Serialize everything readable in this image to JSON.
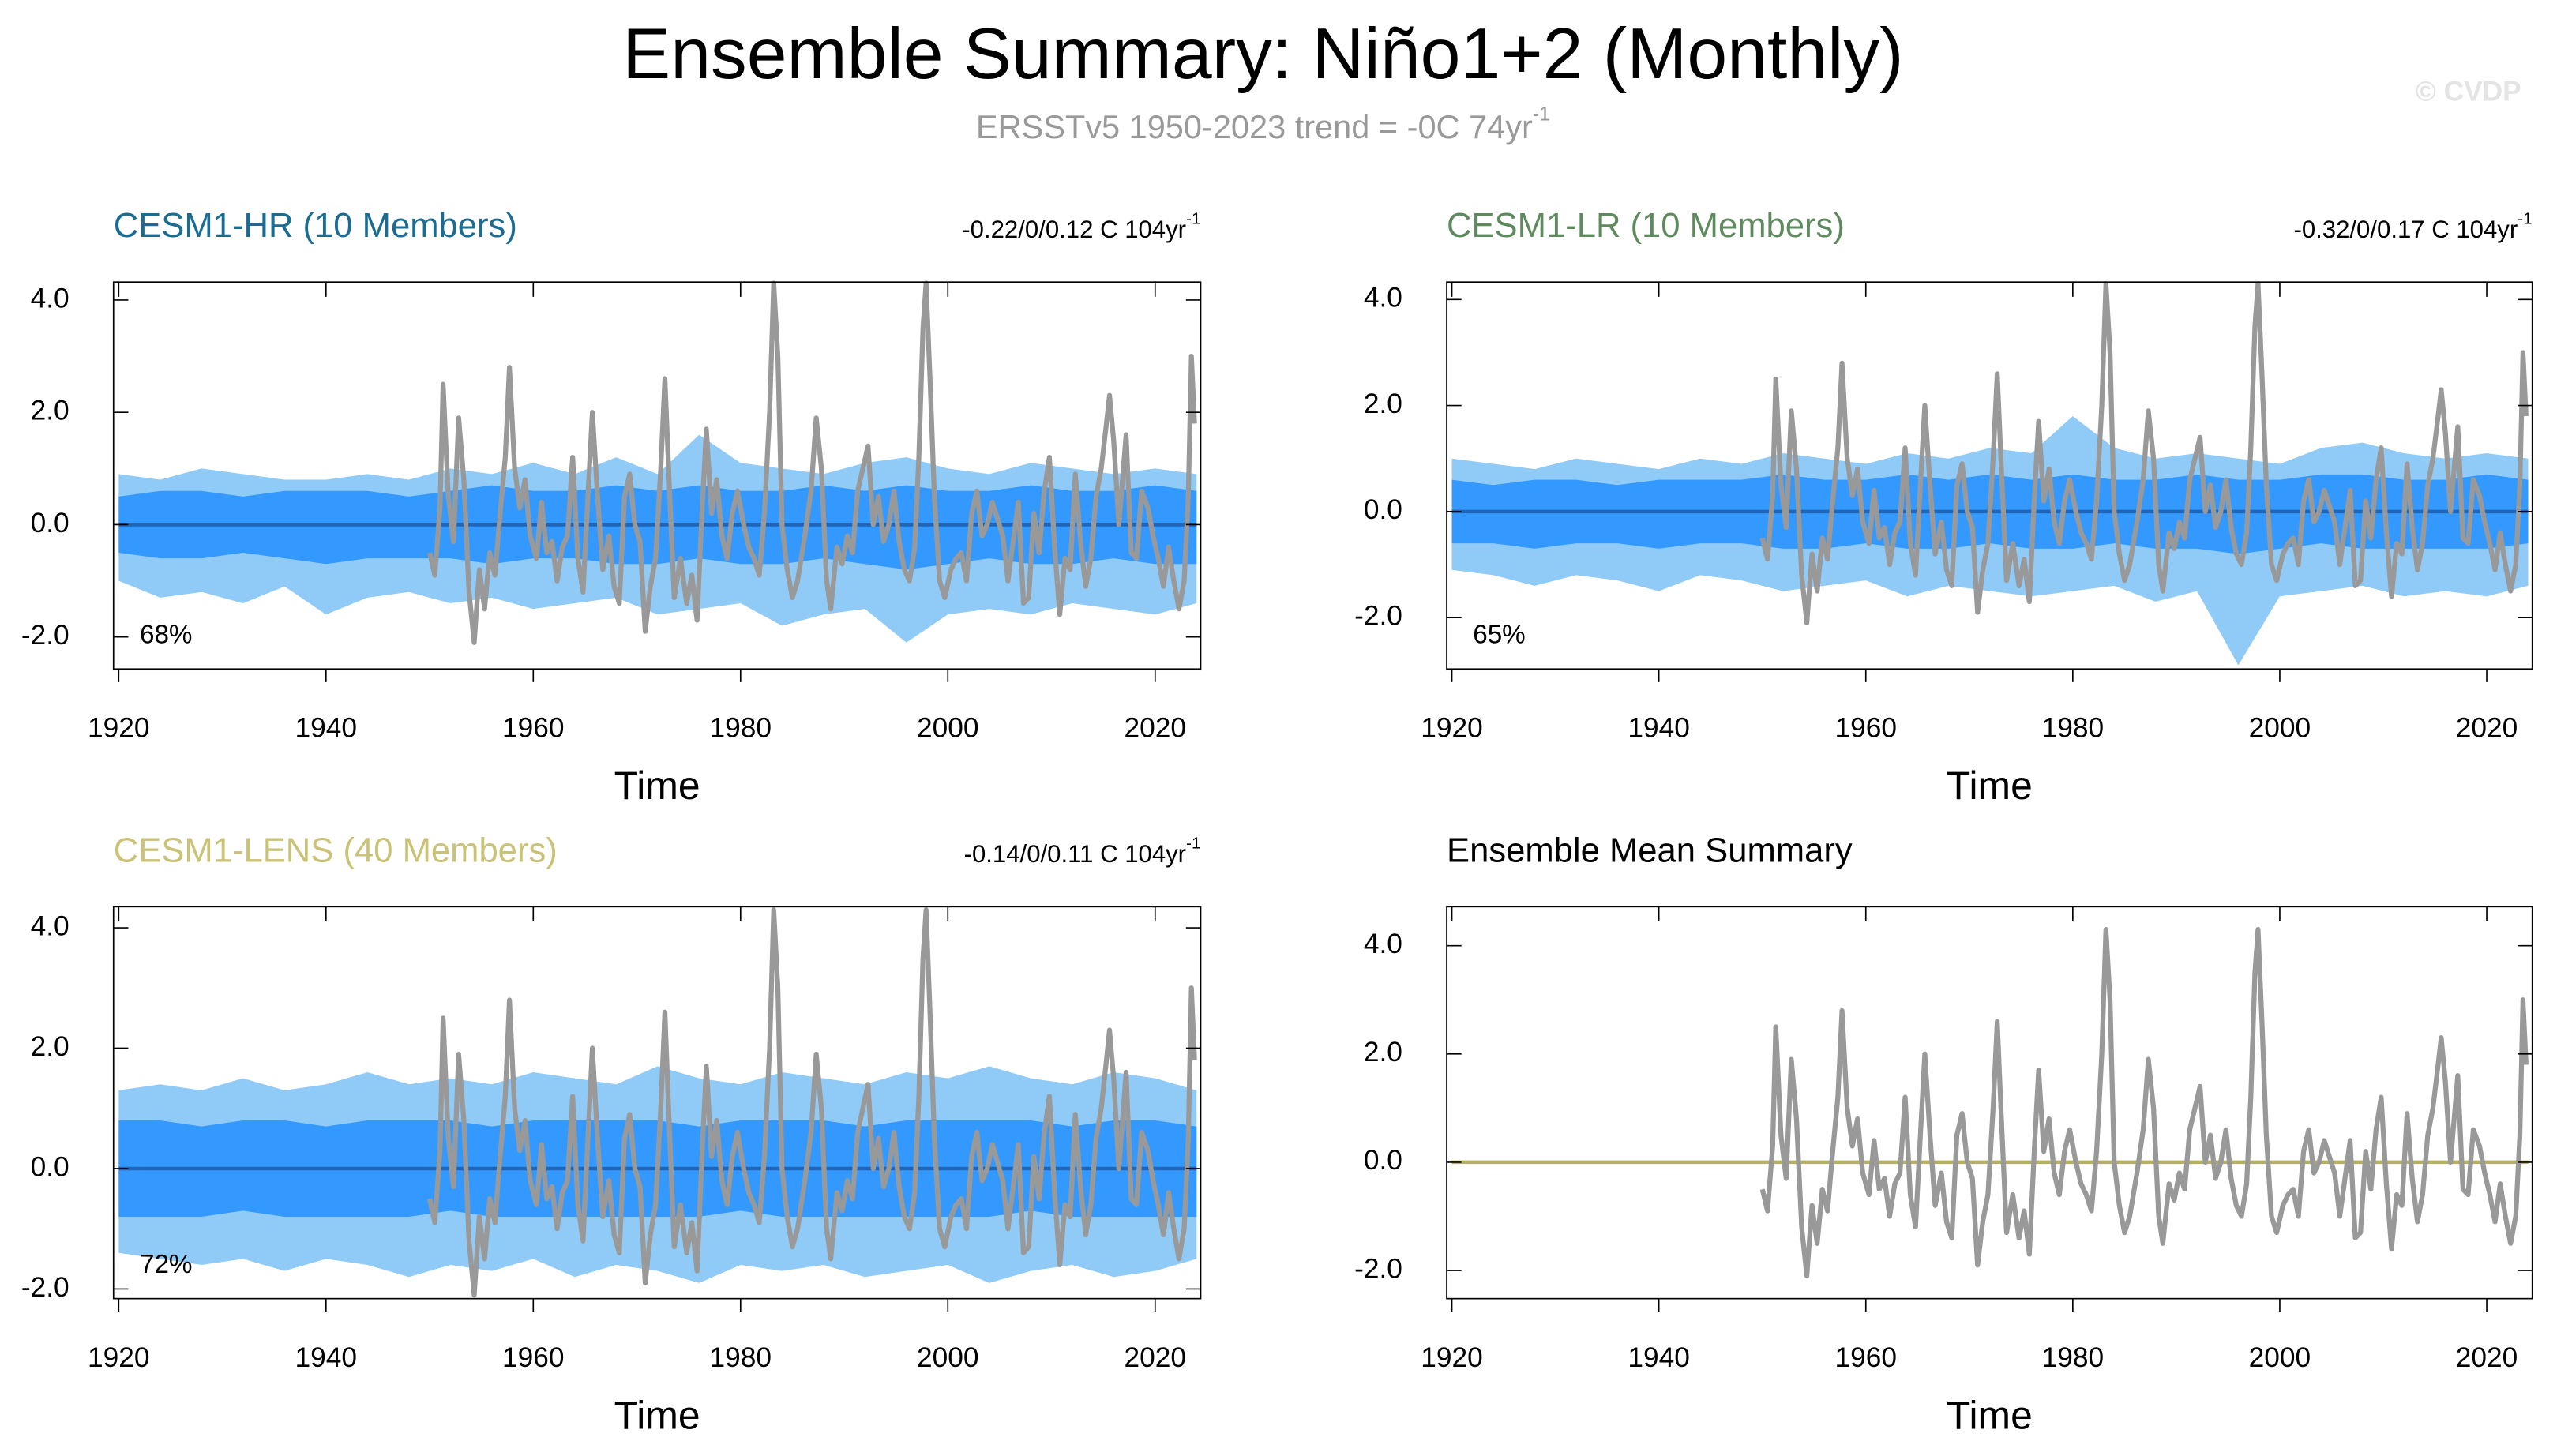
{
  "title": "Ensemble Summary: Niño1+2 (Monthly)",
  "subtitle": {
    "text": "ERSSTv5 1950-2023 trend = -0C 74yr",
    "sup": "-1"
  },
  "credit": "© CVDP",
  "observed": {
    "color": "#999999",
    "x": [
      1950.0,
      1950.5,
      1951.0,
      1951.3,
      1951.8,
      1952.3,
      1952.8,
      1953.3,
      1953.8,
      1954.3,
      1954.8,
      1955.3,
      1955.8,
      1956.3,
      1956.8,
      1957.3,
      1957.7,
      1958.2,
      1958.7,
      1959.2,
      1959.7,
      1960.3,
      1960.8,
      1961.3,
      1961.8,
      1962.3,
      1962.8,
      1963.3,
      1963.8,
      1964.3,
      1964.8,
      1965.3,
      1965.7,
      1966.2,
      1966.7,
      1967.3,
      1967.8,
      1968.3,
      1968.8,
      1969.3,
      1969.8,
      1970.3,
      1970.8,
      1971.3,
      1971.8,
      1972.3,
      1972.7,
      1973.1,
      1973.6,
      1974.2,
      1974.8,
      1975.3,
      1975.8,
      1976.3,
      1976.7,
      1977.2,
      1977.7,
      1978.2,
      1978.7,
      1979.2,
      1979.7,
      1980.3,
      1980.8,
      1981.3,
      1981.8,
      1982.3,
      1982.8,
      1983.2,
      1983.6,
      1984.0,
      1984.5,
      1985.0,
      1985.5,
      1986.2,
      1986.8,
      1987.3,
      1987.8,
      1988.3,
      1988.7,
      1989.3,
      1989.8,
      1990.3,
      1990.8,
      1991.3,
      1991.8,
      1992.3,
      1992.8,
      1993.3,
      1993.8,
      1994.3,
      1994.8,
      1995.3,
      1995.8,
      1996.3,
      1996.8,
      1997.2,
      1997.6,
      1997.9,
      1998.3,
      1998.7,
      1999.2,
      1999.7,
      2000.3,
      2000.8,
      2001.3,
      2001.8,
      2002.3,
      2002.8,
      2003.3,
      2003.8,
      2004.3,
      2004.8,
      2005.3,
      2005.8,
      2006.3,
      2006.8,
      2007.3,
      2007.8,
      2008.3,
      2008.8,
      2009.3,
      2009.8,
      2010.3,
      2010.8,
      2011.3,
      2011.8,
      2012.3,
      2012.8,
      2013.3,
      2013.8,
      2014.3,
      2014.8,
      2015.3,
      2015.6,
      2016.0,
      2016.5,
      2017.2,
      2017.7,
      2018.2,
      2018.7,
      2019.3,
      2019.8,
      2020.3,
      2020.8,
      2021.3,
      2021.8,
      2022.3,
      2022.8,
      2023.2,
      2023.5,
      2023.8
    ],
    "values": [
      -0.5,
      -0.9,
      0.3,
      2.5,
      0.5,
      -0.3,
      1.9,
      0.8,
      -1.2,
      -2.1,
      -0.8,
      -1.5,
      -0.5,
      -0.9,
      0.2,
      1.2,
      2.8,
      1.0,
      0.3,
      0.8,
      -0.2,
      -0.6,
      0.4,
      -0.5,
      -0.3,
      -1.0,
      -0.4,
      -0.2,
      1.2,
      -0.6,
      -1.2,
      0.6,
      2.0,
      0.5,
      -0.8,
      -0.2,
      -1.1,
      -1.4,
      0.5,
      0.9,
      0.0,
      -0.3,
      -1.9,
      -1.1,
      -0.6,
      1.0,
      2.6,
      0.8,
      -1.3,
      -0.6,
      -1.4,
      -0.9,
      -1.7,
      0.3,
      1.7,
      0.2,
      0.8,
      -0.2,
      -0.6,
      0.2,
      0.6,
      0.0,
      -0.4,
      -0.6,
      -0.9,
      0.2,
      2.0,
      4.3,
      3.0,
      0.0,
      -0.8,
      -1.3,
      -1.0,
      -0.2,
      0.6,
      1.9,
      1.0,
      -1.0,
      -1.5,
      -0.4,
      -0.7,
      -0.2,
      -0.5,
      0.6,
      1.0,
      1.4,
      0.0,
      0.5,
      -0.3,
      0.0,
      0.6,
      -0.3,
      -0.8,
      -1.0,
      -0.4,
      1.2,
      3.5,
      4.3,
      2.5,
      0.5,
      -1.0,
      -1.3,
      -0.8,
      -0.6,
      -0.5,
      -1.0,
      0.2,
      0.6,
      -0.2,
      0.0,
      0.4,
      0.1,
      -0.2,
      -1.0,
      -0.3,
      0.4,
      -1.4,
      -1.3,
      0.2,
      -0.5,
      0.6,
      1.2,
      -0.4,
      -1.6,
      -0.6,
      -0.8,
      0.9,
      -0.3,
      -1.1,
      -0.6,
      0.5,
      1.0,
      1.8,
      2.3,
      1.5,
      0.0,
      1.6,
      -0.5,
      -0.6,
      0.6,
      0.3,
      -0.2,
      -0.6,
      -1.1,
      -0.4,
      -1.0,
      -1.5,
      -1.0,
      0.5,
      3.0,
      1.8
    ]
  },
  "chart_data": [
    {
      "type": "line",
      "title": "CESM1-HR (10 Members)",
      "title_color": "#1a6c92",
      "trend": {
        "text": "-0.22/0/0.12 C 104yr",
        "sup": "-1"
      },
      "percent": "68%",
      "xlabel": "Time",
      "xlim": [
        1919.5,
        2024.4
      ],
      "xticks": [
        1920,
        1940,
        1960,
        1980,
        2000,
        2020
      ],
      "ylim": [
        -2.57,
        4.32
      ],
      "yticks": [
        {
          "value": -2,
          "label": "-2.0"
        },
        {
          "value": 0,
          "label": "0.0"
        },
        {
          "value": 2,
          "label": "2.0"
        },
        {
          "value": 4,
          "label": "4.0"
        }
      ],
      "spread": {
        "outer_color": "#90caf7",
        "inner_color": "#3399ff",
        "x": [
          1920,
          1924,
          1928,
          1932,
          1936,
          1940,
          1944,
          1948,
          1952,
          1956,
          1960,
          1964,
          1968,
          1972,
          1976,
          1980,
          1984,
          1988,
          1992,
          1996,
          2000,
          2004,
          2008,
          2012,
          2016,
          2020,
          2024
        ],
        "outer_high": [
          0.9,
          0.8,
          1.0,
          0.9,
          0.8,
          0.8,
          0.9,
          0.8,
          1.0,
          0.9,
          1.1,
          0.9,
          1.2,
          0.9,
          1.6,
          1.1,
          1.0,
          0.9,
          1.1,
          1.2,
          1.0,
          0.9,
          1.1,
          1.0,
          0.9,
          1.0,
          0.9
        ],
        "outer_low": [
          -1.0,
          -1.3,
          -1.2,
          -1.4,
          -1.1,
          -1.6,
          -1.3,
          -1.2,
          -1.4,
          -1.3,
          -1.5,
          -1.4,
          -1.3,
          -1.6,
          -1.5,
          -1.4,
          -1.8,
          -1.6,
          -1.5,
          -2.1,
          -1.6,
          -1.5,
          -1.6,
          -1.4,
          -1.5,
          -1.6,
          -1.4
        ],
        "inner_high": [
          0.5,
          0.6,
          0.6,
          0.5,
          0.6,
          0.6,
          0.6,
          0.5,
          0.6,
          0.7,
          0.6,
          0.6,
          0.7,
          0.6,
          0.7,
          0.6,
          0.6,
          0.7,
          0.6,
          0.7,
          0.6,
          0.6,
          0.7,
          0.6,
          0.6,
          0.7,
          0.6
        ],
        "inner_low": [
          -0.5,
          -0.6,
          -0.6,
          -0.5,
          -0.6,
          -0.7,
          -0.6,
          -0.6,
          -0.6,
          -0.7,
          -0.6,
          -0.6,
          -0.7,
          -0.7,
          -0.6,
          -0.7,
          -0.7,
          -0.6,
          -0.7,
          -0.8,
          -0.7,
          -0.6,
          -0.7,
          -0.7,
          -0.6,
          -0.7,
          -0.7
        ]
      },
      "mean": {
        "color": "#1f66b8",
        "x": [
          1920,
          2024
        ],
        "values": [
          0,
          0
        ]
      }
    },
    {
      "type": "line",
      "title": "CESM1-LR (10 Members)",
      "title_color": "#5e8a5e",
      "trend": {
        "text": "-0.32/0/0.17 C 104yr",
        "sup": "-1"
      },
      "percent": "65%",
      "xlabel": "Time",
      "xlim": [
        1919.5,
        2024.4
      ],
      "xticks": [
        1920,
        1940,
        1960,
        1980,
        2000,
        2020
      ],
      "ylim": [
        -2.97,
        4.33
      ],
      "yticks": [
        {
          "value": -2,
          "label": "-2.0"
        },
        {
          "value": 0,
          "label": "0.0"
        },
        {
          "value": 2,
          "label": "2.0"
        },
        {
          "value": 4,
          "label": "4.0"
        }
      ],
      "spread": {
        "outer_color": "#90caf7",
        "inner_color": "#3399ff",
        "x": [
          1920,
          1924,
          1928,
          1932,
          1936,
          1940,
          1944,
          1948,
          1952,
          1956,
          1960,
          1964,
          1968,
          1972,
          1976,
          1980,
          1984,
          1988,
          1992,
          1996,
          2000,
          2004,
          2008,
          2012,
          2016,
          2020,
          2024
        ],
        "outer_high": [
          1.0,
          0.9,
          0.8,
          1.0,
          0.9,
          0.8,
          1.0,
          0.9,
          1.1,
          1.0,
          0.9,
          1.1,
          1.0,
          1.2,
          1.1,
          1.8,
          1.2,
          1.0,
          1.1,
          1.0,
          0.9,
          1.2,
          1.3,
          1.1,
          1.0,
          1.1,
          1.0
        ],
        "outer_low": [
          -1.1,
          -1.2,
          -1.4,
          -1.2,
          -1.3,
          -1.5,
          -1.2,
          -1.3,
          -1.5,
          -1.4,
          -1.3,
          -1.6,
          -1.4,
          -1.5,
          -1.6,
          -1.5,
          -1.4,
          -1.7,
          -1.5,
          -2.9,
          -1.6,
          -1.5,
          -1.4,
          -1.6,
          -1.5,
          -1.6,
          -1.4
        ],
        "inner_high": [
          0.6,
          0.5,
          0.6,
          0.6,
          0.5,
          0.6,
          0.6,
          0.6,
          0.7,
          0.6,
          0.6,
          0.7,
          0.6,
          0.7,
          0.6,
          0.7,
          0.6,
          0.6,
          0.7,
          0.6,
          0.6,
          0.7,
          0.7,
          0.6,
          0.6,
          0.7,
          0.6
        ],
        "inner_low": [
          -0.6,
          -0.6,
          -0.7,
          -0.6,
          -0.6,
          -0.7,
          -0.6,
          -0.6,
          -0.7,
          -0.7,
          -0.6,
          -0.7,
          -0.7,
          -0.6,
          -0.7,
          -0.7,
          -0.6,
          -0.7,
          -0.7,
          -0.8,
          -0.7,
          -0.6,
          -0.7,
          -0.7,
          -0.7,
          -0.7,
          -0.6
        ]
      },
      "mean": {
        "color": "#1f66b8",
        "x": [
          1920,
          2024
        ],
        "values": [
          0,
          0
        ]
      }
    },
    {
      "type": "line",
      "title": "CESM1-LENS (40 Members)",
      "title_color": "#c9c277",
      "trend": {
        "text": "-0.14/0/0.11 C 104yr",
        "sup": "-1"
      },
      "percent": "72%",
      "xlabel": "Time",
      "xlim": [
        1919.5,
        2024.4
      ],
      "xticks": [
        1920,
        1940,
        1960,
        1980,
        2000,
        2020
      ],
      "ylim": [
        -2.16,
        4.35
      ],
      "yticks": [
        {
          "value": -2,
          "label": "-2.0"
        },
        {
          "value": 0,
          "label": "0.0"
        },
        {
          "value": 2,
          "label": "2.0"
        },
        {
          "value": 4,
          "label": "4.0"
        }
      ],
      "spread": {
        "outer_color": "#90caf7",
        "inner_color": "#3399ff",
        "x": [
          1920,
          1924,
          1928,
          1932,
          1936,
          1940,
          1944,
          1948,
          1952,
          1956,
          1960,
          1964,
          1968,
          1972,
          1976,
          1980,
          1984,
          1988,
          1992,
          1996,
          2000,
          2004,
          2008,
          2012,
          2016,
          2020,
          2024
        ],
        "outer_high": [
          1.3,
          1.4,
          1.3,
          1.5,
          1.3,
          1.4,
          1.6,
          1.4,
          1.5,
          1.4,
          1.6,
          1.5,
          1.4,
          1.7,
          1.5,
          1.4,
          1.6,
          1.5,
          1.4,
          1.6,
          1.5,
          1.7,
          1.5,
          1.4,
          1.6,
          1.5,
          1.3
        ],
        "outer_low": [
          -1.4,
          -1.5,
          -1.6,
          -1.5,
          -1.7,
          -1.5,
          -1.6,
          -1.8,
          -1.6,
          -1.7,
          -1.5,
          -1.8,
          -1.6,
          -1.7,
          -1.9,
          -1.6,
          -1.7,
          -1.6,
          -1.8,
          -1.7,
          -1.6,
          -1.9,
          -1.7,
          -1.6,
          -1.8,
          -1.7,
          -1.5
        ],
        "inner_high": [
          0.8,
          0.8,
          0.7,
          0.8,
          0.8,
          0.7,
          0.8,
          0.8,
          0.8,
          0.7,
          0.8,
          0.8,
          0.8,
          0.8,
          0.7,
          0.8,
          0.8,
          0.8,
          0.7,
          0.8,
          0.8,
          0.8,
          0.8,
          0.7,
          0.8,
          0.8,
          0.7
        ],
        "inner_low": [
          -0.8,
          -0.8,
          -0.8,
          -0.7,
          -0.8,
          -0.8,
          -0.8,
          -0.8,
          -0.7,
          -0.8,
          -0.8,
          -0.8,
          -0.8,
          -0.8,
          -0.8,
          -0.7,
          -0.8,
          -0.8,
          -0.8,
          -0.8,
          -0.8,
          -0.8,
          -0.7,
          -0.8,
          -0.8,
          -0.8,
          -0.8
        ]
      },
      "mean": {
        "color": "#1f66b8",
        "x": [
          1920,
          2024
        ],
        "values": [
          0,
          0
        ]
      }
    },
    {
      "type": "line",
      "title": "Ensemble Mean Summary",
      "title_color": "#000000",
      "xlabel": "Time",
      "xlim": [
        1919.5,
        2024.4
      ],
      "xticks": [
        1920,
        1940,
        1960,
        1980,
        2000,
        2020
      ],
      "ylim": [
        -2.52,
        4.72
      ],
      "yticks": [
        {
          "value": -2,
          "label": "-2.0"
        },
        {
          "value": 0,
          "label": "0.0"
        },
        {
          "value": 2,
          "label": "2.0"
        },
        {
          "value": 4,
          "label": "4.0"
        }
      ],
      "mean": {
        "color": "#b5b064",
        "x": [
          1920,
          2024
        ],
        "values": [
          0,
          0
        ]
      }
    }
  ]
}
